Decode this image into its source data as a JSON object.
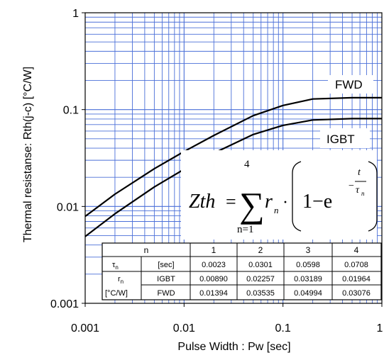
{
  "chart_data": {
    "type": "line",
    "xlabel": "Pulse Width : Pw [sec]",
    "ylabel": "Thermal resistanse: Rth(j-c) [°C/W]",
    "xscale": "log",
    "yscale": "log",
    "xlim": [
      0.001,
      1
    ],
    "ylim": [
      0.001,
      1
    ],
    "xticks": [
      "0.001",
      "0.01",
      "0.1",
      "1"
    ],
    "yticks": [
      "0.001",
      "0.01",
      "0.1",
      "1"
    ],
    "grid": true,
    "series": [
      {
        "name": "FWD",
        "color": "#000000",
        "x": [
          0.001,
          0.002,
          0.005,
          0.01,
          0.02,
          0.05,
          0.1,
          0.2,
          0.5,
          1
        ],
        "y": [
          0.0079,
          0.0134,
          0.0245,
          0.0369,
          0.0541,
          0.0866,
          0.1104,
          0.1287,
          0.1326,
          0.1327
        ]
      },
      {
        "name": "IGBT",
        "color": "#000000",
        "x": [
          0.001,
          0.002,
          0.005,
          0.01,
          0.02,
          0.05,
          0.1,
          0.2,
          0.5,
          1
        ],
        "y": [
          0.0049,
          0.0084,
          0.0159,
          0.0242,
          0.0355,
          0.0553,
          0.0688,
          0.0782,
          0.0807,
          0.0807
        ]
      }
    ],
    "equation": {
      "lhs": "Zth",
      "equals": "=",
      "sum_upper": "4",
      "sum_lower": "n=1",
      "sigma": "∑",
      "r": "r",
      "r_sub": "n",
      "dot": "·",
      "one_minus": "1−e",
      "exp_num": "t",
      "exp_den": "τ",
      "exp_den_sub": "n",
      "exp_minus": "−"
    },
    "table": {
      "header": [
        "n",
        "1",
        "2",
        "3",
        "4"
      ],
      "tau_label": "τ",
      "tau_sub": "n",
      "tau_unit": "[sec]",
      "tau_values": [
        "0.0023",
        "0.0301",
        "0.0598",
        "0.0708"
      ],
      "r_label": "r",
      "r_sub": "n",
      "r_unit": "[°C/W]",
      "igbt_label": "IGBT",
      "igbt_values": [
        "0.00890",
        "0.02257",
        "0.03189",
        "0.01964"
      ],
      "fwd_label": "FWD",
      "fwd_values": [
        "0.01394",
        "0.03535",
        "0.04994",
        "0.03076"
      ]
    }
  }
}
